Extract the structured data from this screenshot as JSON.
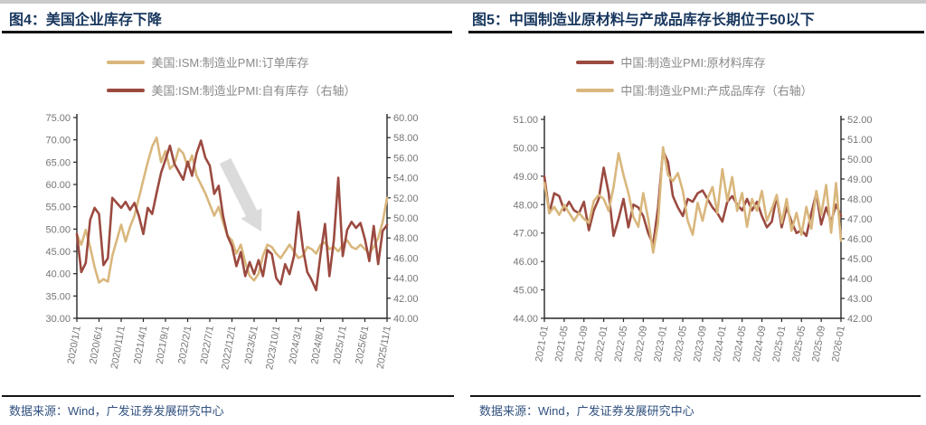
{
  "figures": [
    {
      "source": "数据来源：Wind，广发证券发展研究中心"
    },
    {
      "source": "数据来源：Wind，广发证券发展研究中心"
    }
  ],
  "colors": {
    "tan": "#D9B77D",
    "maroon": "#9B4A40",
    "title_navy": "#17365D",
    "axis_line": "#262626",
    "tick_label_gray": "#767676",
    "arrow_gray": "#DBDBDB"
  },
  "chart_data": [
    {
      "type": "line",
      "title": "图4：美国企业库存下降",
      "xlabel": "",
      "ylabel": "",
      "grid": false,
      "legend_position": "top",
      "x_frequency": "monthly",
      "x_start": "2020/1/1",
      "x_end": "2025/11/1",
      "n_points": 71,
      "x_tick_labels": [
        "2020/1/1",
        "2020/6/1",
        "2020/11/1",
        "2021/4/1",
        "2021/9/1",
        "2022/2/1",
        "2022/7/1",
        "2022/12/1",
        "2023/5/1",
        "2023/10/1",
        "2024/3/1",
        "2024/8/1",
        "2025/1/1",
        "2025/6/1",
        "2025/11/1"
      ],
      "left_axis": {
        "min": 30,
        "max": 75,
        "step": 5,
        "tick_format": "0.00"
      },
      "right_axis": {
        "min": 40,
        "max": 60,
        "step": 2,
        "tick_format": "0.00"
      },
      "annotation": {
        "shape": "down-right-arrow",
        "color": "#DBDBDB"
      },
      "series": [
        {
          "name": "美国:ISM:制造业PMI:订单库存",
          "axis": "left",
          "color": "#D9B77D",
          "values": [
            48.8,
            46.5,
            49.8,
            46.0,
            41.5,
            38.0,
            38.8,
            38.2,
            44.0,
            47.5,
            51.0,
            47.2,
            50.5,
            53.0,
            57.0,
            61.0,
            65.0,
            68.5,
            70.5,
            65.0,
            67.5,
            63.5,
            64.5,
            68.0,
            67.0,
            64.0,
            66.5,
            62.0,
            60.0,
            58.0,
            55.5,
            53.0,
            55.0,
            51.5,
            48.5,
            47.5,
            44.5,
            46.5,
            42.5,
            39.5,
            38.5,
            40.0,
            44.0,
            46.5,
            46.0,
            44.5,
            43.5,
            45.0,
            46.5,
            45.0,
            43.5,
            44.0,
            46.0,
            45.5,
            44.5,
            46.5,
            47.0,
            45.5,
            46.0,
            45.0,
            46.5,
            47.5,
            46.0,
            45.5,
            46.5,
            45.5,
            44.5,
            46.0,
            48.0,
            51.5,
            57.0
          ]
        },
        {
          "name": "美国:ISM:制造业PMI:自有库存（右轴）",
          "axis": "right",
          "color": "#9B4A40",
          "values": [
            48.4,
            44.6,
            45.5,
            49.8,
            51.0,
            50.4,
            45.3,
            46.0,
            52.0,
            51.5,
            51.0,
            51.6,
            50.8,
            51.5,
            50.2,
            48.4,
            51.0,
            50.4,
            52.5,
            54.5,
            55.8,
            57.2,
            55.4,
            54.6,
            53.8,
            55.6,
            54.2,
            56.4,
            57.7,
            56.0,
            55.2,
            52.4,
            53.2,
            50.2,
            48.2,
            47.2,
            45.2,
            46.6,
            44.2,
            45.6,
            44.4,
            45.8,
            44.2,
            46.8,
            46.4,
            44.0,
            43.4,
            45.4,
            44.4,
            46.2,
            50.6,
            47.0,
            44.6,
            43.8,
            42.8,
            46.4,
            49.4,
            44.2,
            47.8,
            54.0,
            46.2,
            48.8,
            49.6,
            49.0,
            49.5,
            47.9,
            45.7,
            49.2,
            45.4,
            48.7,
            49.3
          ]
        }
      ]
    },
    {
      "type": "line",
      "title": "图5：中国制造业原材料与产成品库存长期位于50以下",
      "xlabel": "",
      "ylabel": "",
      "grid": false,
      "legend_position": "top",
      "x_frequency": "monthly",
      "x_start": "2021-01",
      "x_end": "2026-01",
      "n_points": 61,
      "x_tick_labels": [
        "2021-01",
        "2021-05",
        "2021-09",
        "2022-01",
        "2022-05",
        "2022-09",
        "2023-01",
        "2023-05",
        "2023-09",
        "2024-01",
        "2024-05",
        "2024-09",
        "2025-01",
        "2025-05",
        "2025-09",
        "2026-01"
      ],
      "left_axis": {
        "min": 44,
        "max": 51,
        "step": 1,
        "tick_format": "0.00"
      },
      "right_axis": {
        "min": 42,
        "max": 52,
        "step": 1,
        "tick_format": "0.00"
      },
      "series": [
        {
          "name": "中国:制造业PMI:原材料库存",
          "axis": "left",
          "color": "#9B4A40",
          "values": [
            49.0,
            47.7,
            48.4,
            48.3,
            47.8,
            48.1,
            47.8,
            47.7,
            48.1,
            47.1,
            47.8,
            48.2,
            49.3,
            48.4,
            46.9,
            47.5,
            48.2,
            47.2,
            48.0,
            47.9,
            47.6,
            47.0,
            46.6,
            47.9,
            49.9,
            49.5,
            48.3,
            47.9,
            47.6,
            48.2,
            48.1,
            48.4,
            48.5,
            48.2,
            47.9,
            47.7,
            47.4,
            48.1,
            48.3,
            48.0,
            47.8,
            48.2,
            47.8,
            48.1,
            47.6,
            47.2,
            47.4,
            48.3,
            47.2,
            47.9,
            47.4,
            47.0,
            47.1,
            46.9,
            47.7,
            48.4,
            47.3,
            47.9,
            47.4,
            48.0,
            47.6
          ]
        },
        {
          "name": "中国:制造业PMI:产成品库存（右轴）",
          "axis": "right",
          "color": "#D9B77D",
          "values": [
            48.8,
            47.3,
            47.6,
            47.2,
            47.7,
            47.3,
            46.9,
            47.3,
            47.0,
            46.8,
            47.9,
            48.2,
            48.0,
            47.4,
            48.6,
            50.3,
            49.2,
            48.3,
            47.1,
            46.6,
            48.3,
            47.0,
            45.3,
            46.8,
            50.6,
            49.2,
            48.9,
            49.3,
            48.4,
            46.9,
            46.2,
            47.8,
            46.9,
            48.0,
            48.6,
            47.3,
            49.5,
            47.9,
            49.1,
            47.4,
            48.3,
            46.6,
            48.0,
            47.4,
            48.4,
            46.9,
            47.5,
            48.2,
            46.8,
            48.0,
            46.4,
            47.3,
            46.2,
            47.6,
            46.5,
            48.4,
            47.2,
            48.7,
            46.3,
            48.8,
            45.9
          ]
        }
      ]
    }
  ]
}
